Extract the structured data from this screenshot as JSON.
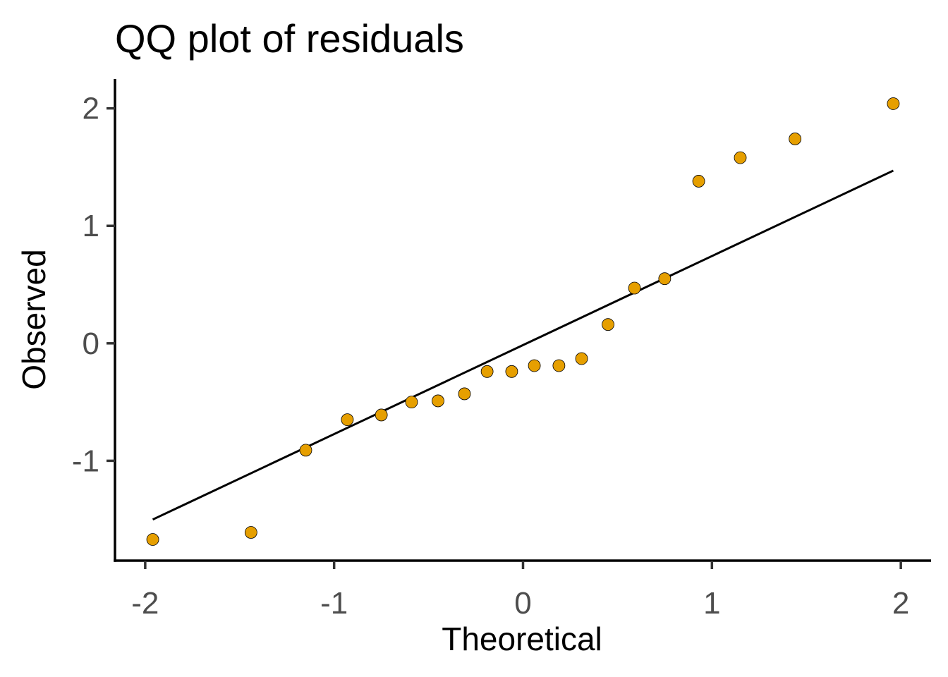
{
  "chart_data": {
    "type": "scatter",
    "title": "QQ plot of residuals",
    "xlabel": "Theoretical",
    "ylabel": "Observed",
    "xlim": [
      -2.16,
      2.16
    ],
    "ylim": [
      -1.85,
      2.25
    ],
    "x_ticks": [
      -2,
      -1,
      0,
      1,
      2
    ],
    "y_ticks": [
      -1,
      0,
      1,
      2
    ],
    "x_tick_labels": [
      "-2",
      "-1",
      "0",
      "1",
      "2"
    ],
    "y_tick_labels": [
      "-1",
      "0",
      "1",
      "2"
    ],
    "grid": false,
    "point_color": "#E69F00",
    "point_stroke": "#000000",
    "line_color": "#000000",
    "points": {
      "x": [
        -1.96,
        -1.44,
        -1.15,
        -0.93,
        -0.75,
        -0.59,
        -0.45,
        -0.31,
        -0.19,
        -0.06,
        0.06,
        0.19,
        0.31,
        0.45,
        0.59,
        0.75,
        0.93,
        1.15,
        1.44,
        1.96
      ],
      "y": [
        -1.67,
        -1.61,
        -0.91,
        -0.65,
        -0.61,
        -0.5,
        -0.49,
        -0.43,
        -0.24,
        -0.24,
        -0.19,
        -0.19,
        -0.13,
        0.16,
        0.47,
        0.55,
        1.38,
        1.58,
        1.74,
        2.04
      ]
    },
    "reference_line": {
      "x": [
        -1.96,
        1.96
      ],
      "y": [
        -1.5,
        1.47
      ]
    }
  }
}
